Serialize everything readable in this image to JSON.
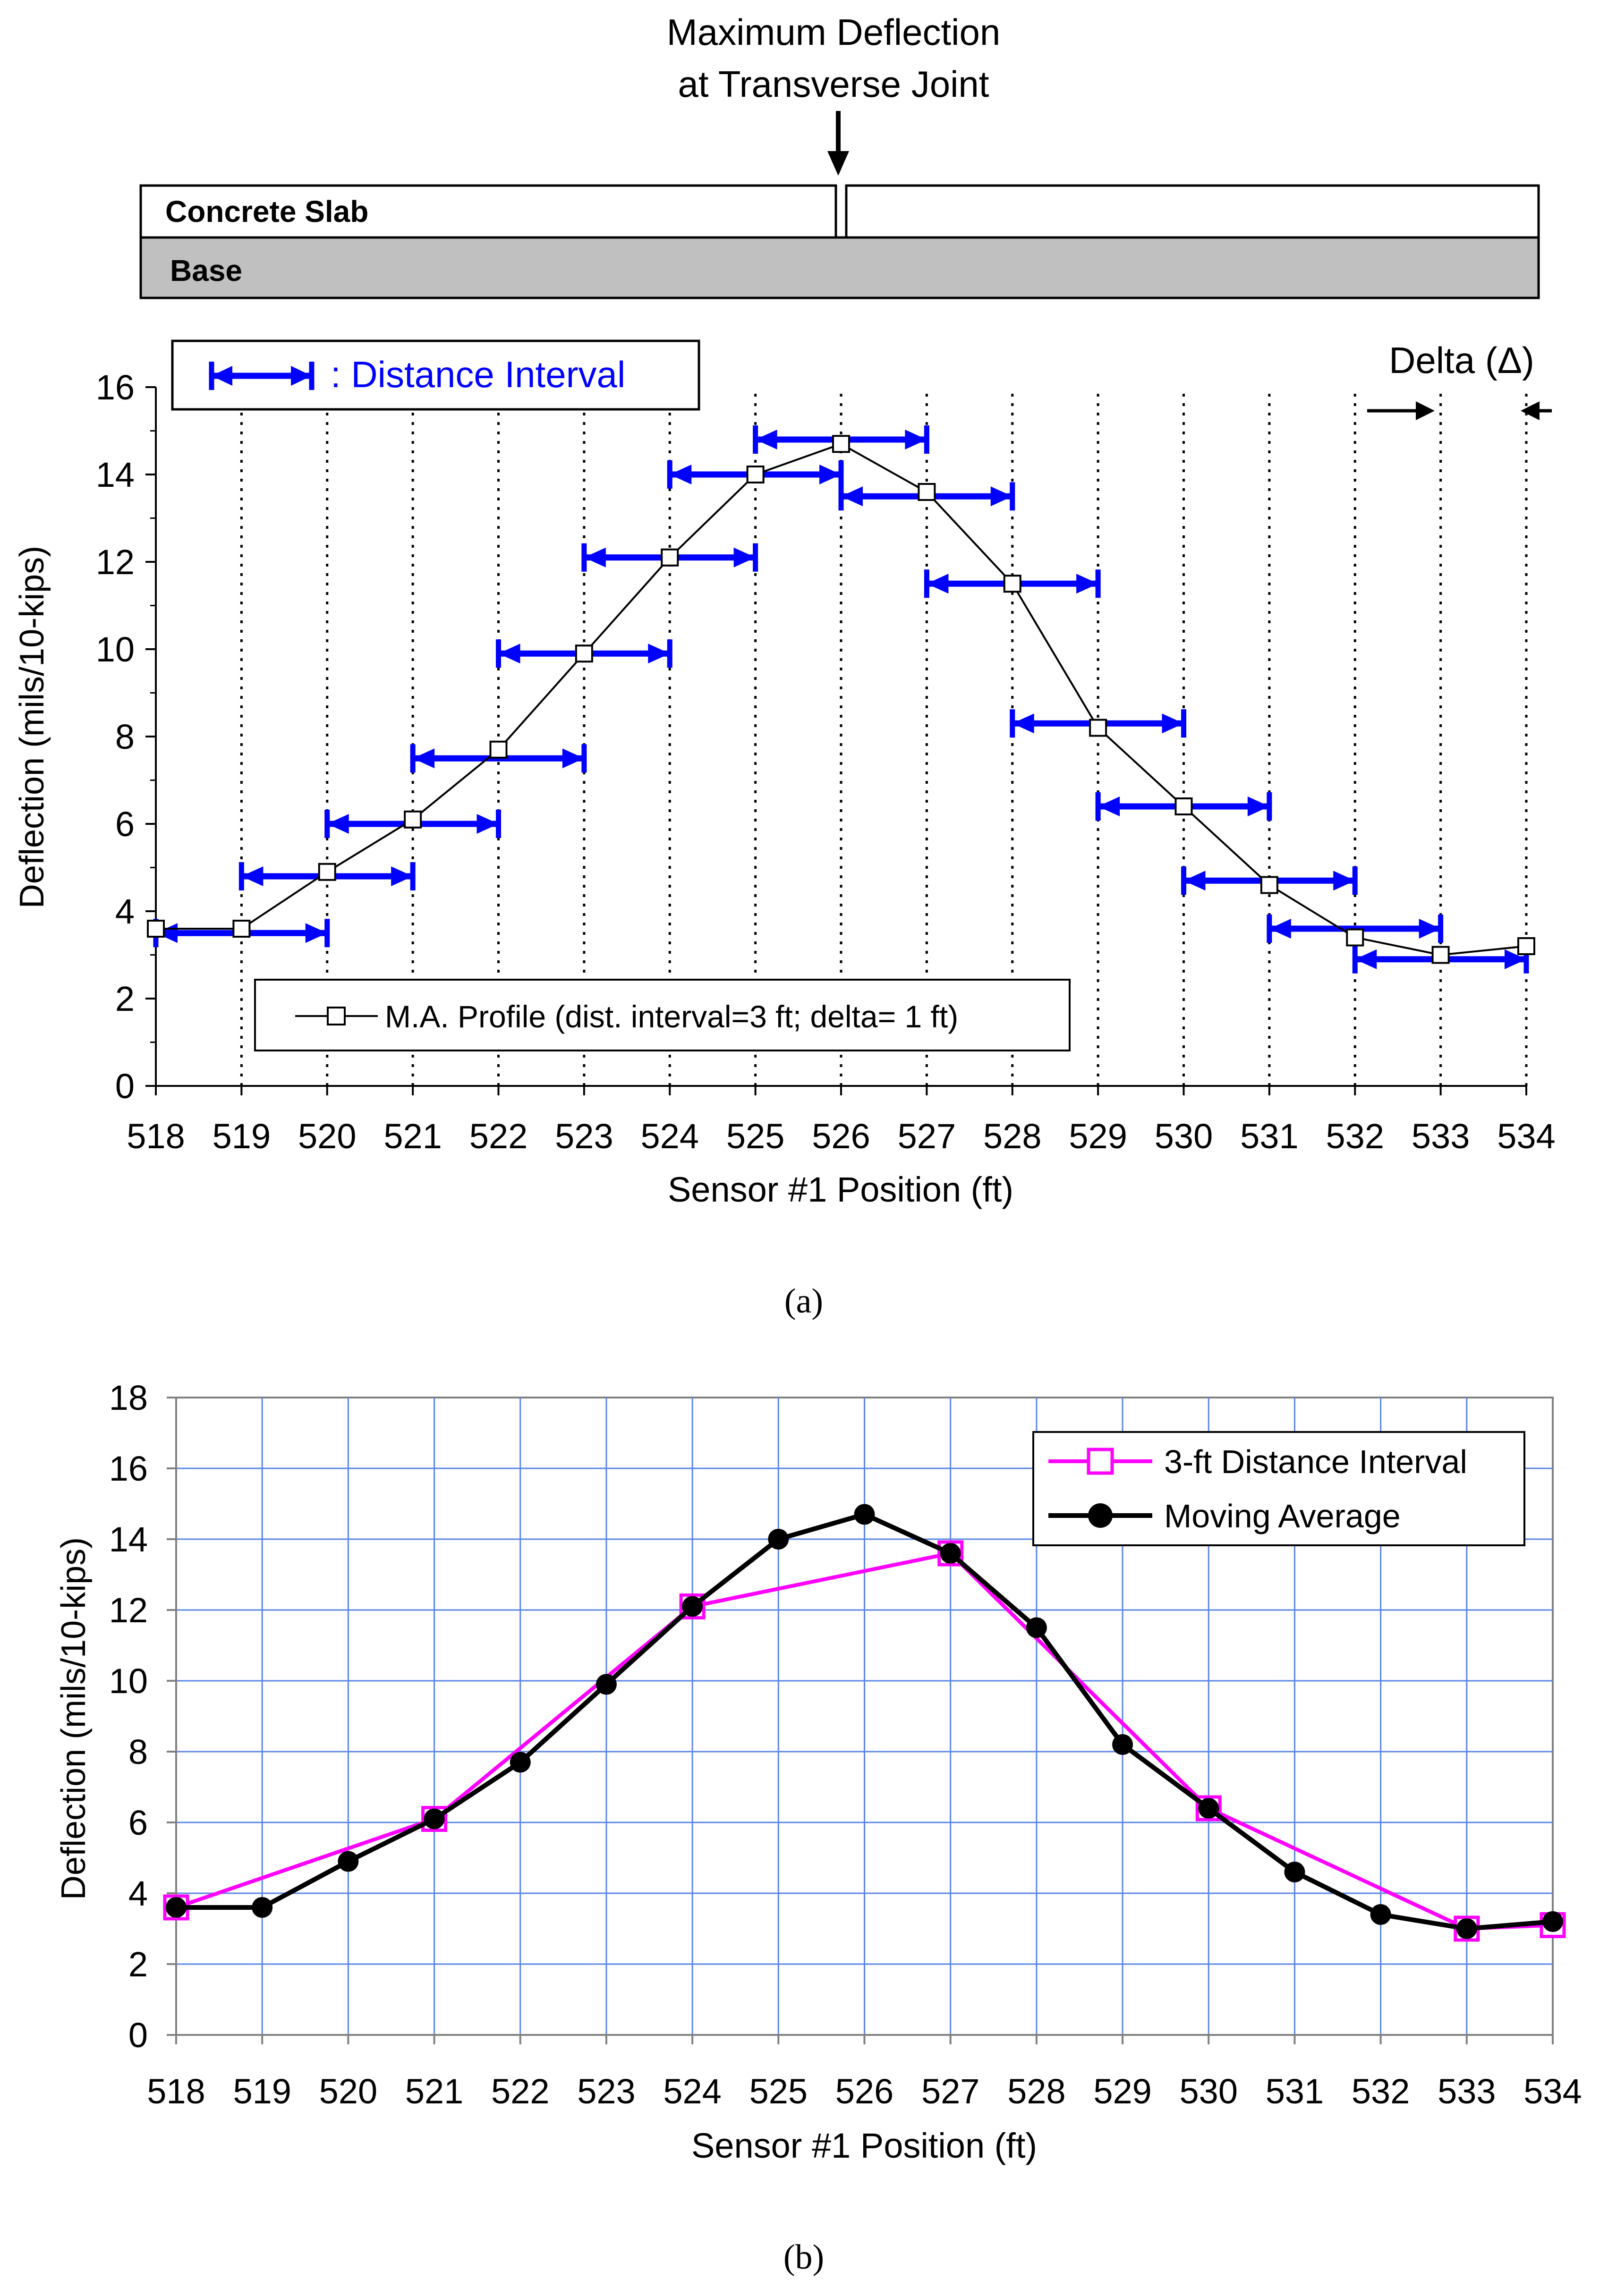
{
  "header": {
    "annotation_line1": "Maximum Deflection",
    "annotation_line2": "at Transverse Joint",
    "slab_label": "Concrete Slab",
    "base_label": "Base"
  },
  "colors": {
    "interval_blue": "#0000ff",
    "magenta": "#ff00ff",
    "grid_blue": "#5a84e6",
    "base_gray": "#c0c0c0",
    "black": "#000000"
  },
  "chart_data": [
    {
      "type": "line",
      "panel_label": "(a)",
      "xlabel": "Sensor #1 Position (ft)",
      "ylabel": "Deflection (mils/10-kips)",
      "xlim": [
        518,
        534
      ],
      "ylim": [
        0,
        16
      ],
      "categories": [
        "518",
        "519",
        "520",
        "521",
        "522",
        "523",
        "524",
        "525",
        "526",
        "527",
        "528",
        "529",
        "530",
        "531",
        "532",
        "533",
        "534"
      ],
      "ticks_y": [
        "0",
        "2",
        "4",
        "6",
        "8",
        "10",
        "12",
        "14",
        "16"
      ],
      "interval_legend": ": Distance Interval",
      "delta_label": "Delta (Δ)",
      "delta_range": [
        533,
        534
      ],
      "series": [
        {
          "name": "M.A. Profile (dist. interval=3 ft; delta= 1 ft)",
          "marker": "square",
          "x": [
            518,
            519,
            520,
            521,
            522,
            523,
            524,
            525,
            526,
            527,
            528,
            529,
            530,
            531,
            532,
            533,
            534
          ],
          "values": [
            3.6,
            3.6,
            4.9,
            6.1,
            7.7,
            9.9,
            12.1,
            14.0,
            14.7,
            13.6,
            11.5,
            8.2,
            6.4,
            4.6,
            3.4,
            3.0,
            3.2
          ]
        }
      ],
      "distance_intervals": [
        {
          "start": 518,
          "end": 520,
          "y": 3.5
        },
        {
          "start": 519,
          "end": 521,
          "y": 4.8
        },
        {
          "start": 520,
          "end": 522,
          "y": 6.0
        },
        {
          "start": 521,
          "end": 523,
          "y": 7.5
        },
        {
          "start": 522,
          "end": 524,
          "y": 9.9
        },
        {
          "start": 523,
          "end": 525,
          "y": 12.1
        },
        {
          "start": 524,
          "end": 526,
          "y": 14.0
        },
        {
          "start": 525,
          "end": 527,
          "y": 14.8
        },
        {
          "start": 526,
          "end": 528,
          "y": 13.5
        },
        {
          "start": 527,
          "end": 529,
          "y": 11.5
        },
        {
          "start": 528,
          "end": 530,
          "y": 8.3
        },
        {
          "start": 529,
          "end": 531,
          "y": 6.4
        },
        {
          "start": 530,
          "end": 532,
          "y": 4.7
        },
        {
          "start": 531,
          "end": 533,
          "y": 3.6
        },
        {
          "start": 532,
          "end": 534,
          "y": 2.9
        }
      ],
      "legend_position": "bottom-center"
    },
    {
      "type": "line",
      "panel_label": "(b)",
      "xlabel": "Sensor #1 Position (ft)",
      "ylabel": "Deflection (mils/10-kips)",
      "xlim": [
        518,
        534
      ],
      "ylim": [
        0,
        18
      ],
      "categories": [
        "518",
        "519",
        "520",
        "521",
        "522",
        "523",
        "524",
        "525",
        "526",
        "527",
        "528",
        "529",
        "530",
        "531",
        "532",
        "533",
        "534"
      ],
      "ticks_y": [
        "0",
        "2",
        "4",
        "6",
        "8",
        "10",
        "12",
        "14",
        "16",
        "18"
      ],
      "grid": true,
      "series": [
        {
          "name": "3-ft Distance Interval",
          "marker": "square",
          "color": "#ff00ff",
          "x": [
            518,
            521,
            524,
            527,
            530,
            533,
            534
          ],
          "values": [
            3.6,
            6.1,
            12.1,
            13.6,
            6.4,
            3.0,
            3.1
          ]
        },
        {
          "name": "Moving Average",
          "marker": "circle",
          "color": "#000000",
          "x": [
            518,
            519,
            520,
            521,
            522,
            523,
            524,
            525,
            526,
            527,
            528,
            529,
            530,
            531,
            532,
            533,
            534
          ],
          "values": [
            3.6,
            3.6,
            4.9,
            6.1,
            7.7,
            9.9,
            12.1,
            14.0,
            14.7,
            13.6,
            11.5,
            8.2,
            6.4,
            4.6,
            3.4,
            3.0,
            3.2
          ]
        }
      ],
      "legend_position": "top-right"
    }
  ]
}
